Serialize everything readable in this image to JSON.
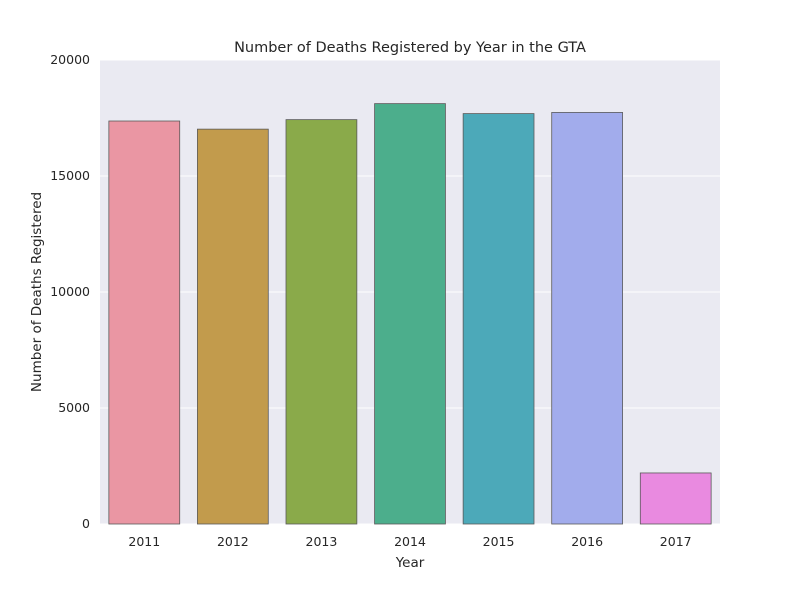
{
  "chart_data": {
    "type": "bar",
    "title": "Number of Deaths Registered by Year in the GTA",
    "xlabel": "Year",
    "ylabel": "Number of Deaths Registered",
    "categories": [
      "2011",
      "2012",
      "2013",
      "2014",
      "2015",
      "2016",
      "2017"
    ],
    "values": [
      17370,
      17020,
      17430,
      18120,
      17690,
      17740,
      2200
    ],
    "colors": [
      "#ea96a3",
      "#c29b4c",
      "#8aaa4a",
      "#4cae8c",
      "#4ca9b9",
      "#a2acec",
      "#e98ae0"
    ],
    "ylim": [
      0,
      20000
    ],
    "yticks": [
      0,
      5000,
      10000,
      15000,
      20000
    ],
    "grid": true,
    "background": "#eaeaf2",
    "gridline_color": "#ffffff"
  }
}
